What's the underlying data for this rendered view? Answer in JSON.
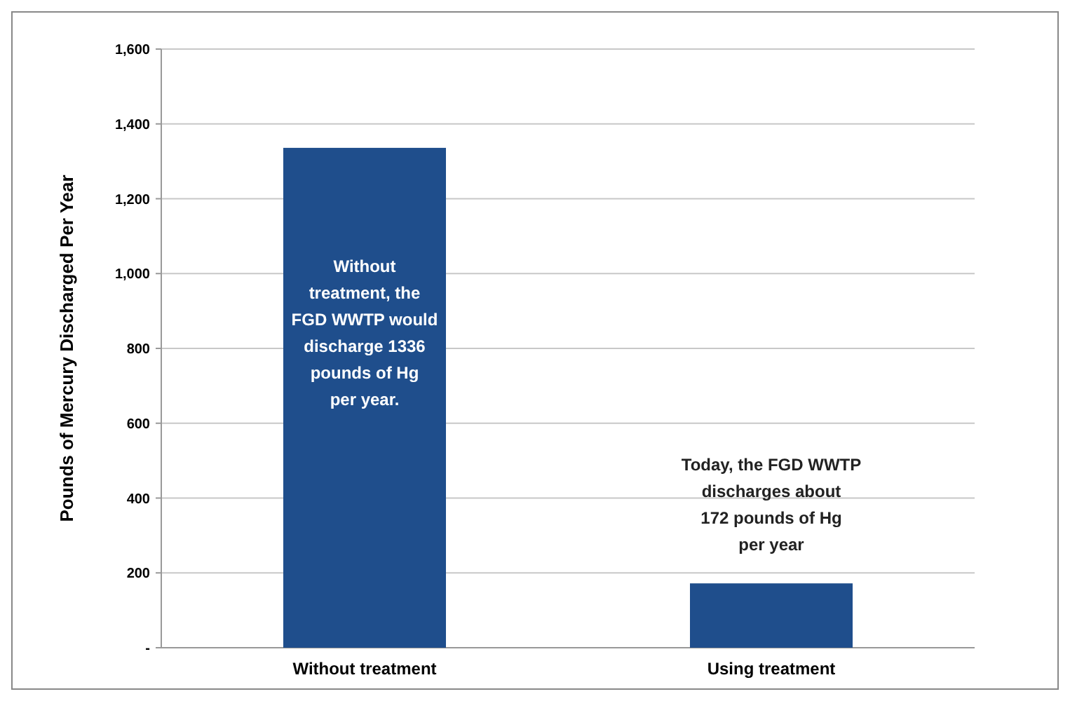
{
  "chart_data": {
    "type": "bar",
    "ylabel": "Pounds of Mercury Discharged Per Year",
    "categories": [
      "Without treatment",
      "Using treatment"
    ],
    "values": [
      1336,
      172
    ],
    "color": "#1f4e8c",
    "ylim": [
      0,
      1600
    ],
    "yticks": [
      {
        "value": 0,
        "label": "-"
      },
      {
        "value": 200,
        "label": "200"
      },
      {
        "value": 400,
        "label": "400"
      },
      {
        "value": 600,
        "label": "600"
      },
      {
        "value": 800,
        "label": "800"
      },
      {
        "value": 1000,
        "label": "1,000"
      },
      {
        "value": 1200,
        "label": "1,200"
      },
      {
        "value": 1400,
        "label": "1,400"
      },
      {
        "value": 1600,
        "label": "1,600"
      }
    ],
    "grid": "y",
    "annotations": [
      "Without treatment, the FGD WWTP would discharge 1336 pounds of Hg per year.",
      "Today, the FGD WWTP discharges about 172 pounds of Hg per year"
    ]
  }
}
